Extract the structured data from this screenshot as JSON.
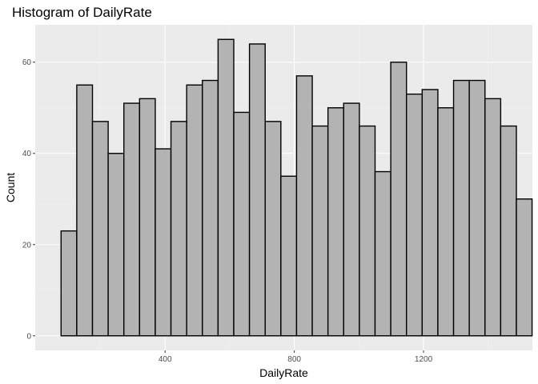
{
  "chart_data": {
    "type": "bar",
    "title": "Histogram of DailyRate",
    "xlabel": "DailyRate",
    "ylabel": "Count",
    "bin_width": 48.6,
    "first_bin_start": 78,
    "x_range": [
      -2,
      1537
    ],
    "ylim": [
      -3.2,
      68.2
    ],
    "x_ticks": [
      400,
      800,
      1200
    ],
    "y_ticks": [
      0,
      20,
      40,
      60
    ],
    "grid": true,
    "values": [
      23,
      55,
      47,
      40,
      51,
      52,
      41,
      47,
      55,
      56,
      65,
      49,
      64,
      47,
      35,
      57,
      46,
      50,
      51,
      46,
      36,
      60,
      53,
      54,
      50,
      56,
      56,
      52,
      46,
      30
    ]
  }
}
